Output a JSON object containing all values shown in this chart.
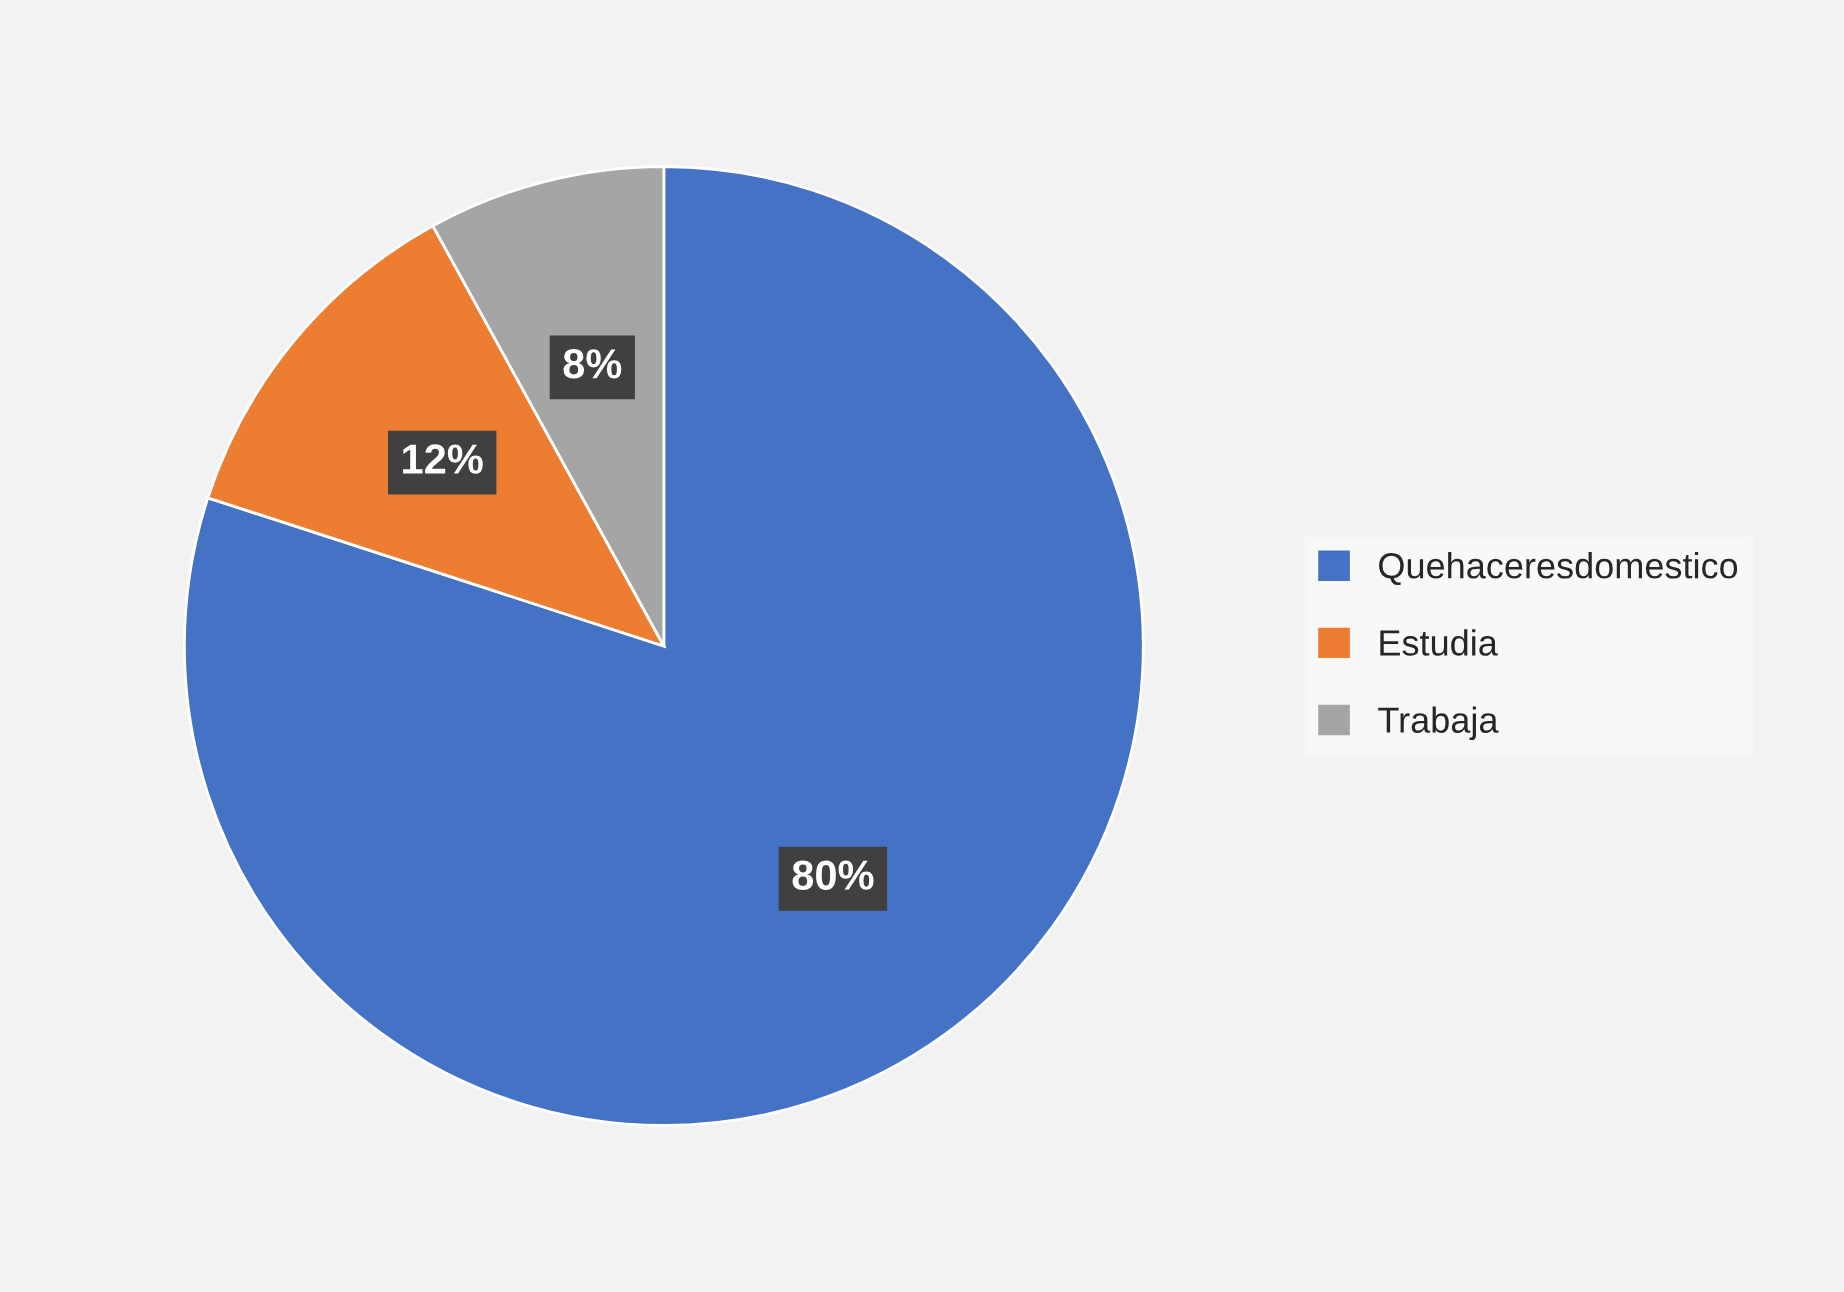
{
  "chart_data": {
    "type": "pie",
    "categories": [
      "Quehaceresdomestico",
      "Estudia",
      "Trabaja"
    ],
    "values": [
      80,
      12,
      8
    ],
    "colors": [
      "#4472c4",
      "#ed7d31",
      "#a5a5a5"
    ],
    "value_labels": [
      "80%",
      "12%",
      "8%"
    ],
    "legend": "right"
  }
}
